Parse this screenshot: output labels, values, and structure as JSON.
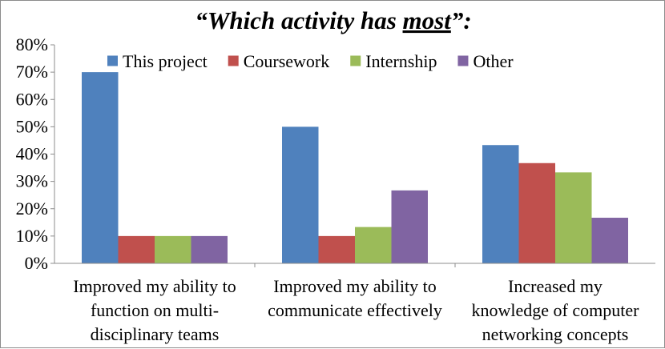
{
  "chart_data": {
    "type": "bar",
    "title": {
      "prefix": "“Which activity has ",
      "emphasis": "most",
      "suffix": "”:"
    },
    "categories": [
      [
        "Improved my ability to",
        "function on multi-",
        "disciplinary teams"
      ],
      [
        "Improved my ability to",
        "communicate effectively"
      ],
      [
        "Increased my",
        "knowledge of computer",
        "networking concepts"
      ]
    ],
    "series": [
      {
        "name": "This project",
        "color": "#4f81bd",
        "values": [
          70,
          50,
          43.3
        ]
      },
      {
        "name": "Coursework",
        "color": "#c0504d",
        "values": [
          10,
          10,
          36.7
        ]
      },
      {
        "name": "Internship",
        "color": "#9bbb59",
        "values": [
          10,
          13.3,
          33.3
        ]
      },
      {
        "name": "Other",
        "color": "#8064a2",
        "values": [
          10,
          26.7,
          16.7
        ]
      }
    ],
    "ylim": [
      0,
      80
    ],
    "yticks": [
      "0%",
      "10%",
      "20%",
      "30%",
      "40%",
      "50%",
      "60%",
      "70%",
      "80%"
    ],
    "grid": false,
    "legend_position": "top"
  }
}
